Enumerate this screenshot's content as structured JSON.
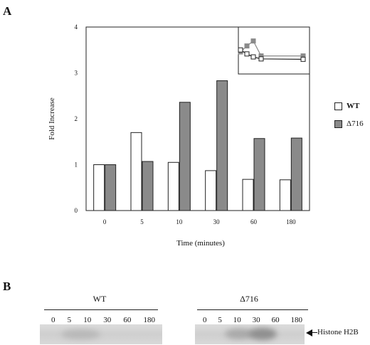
{
  "panel_a_label": "A",
  "panel_b_label": "B",
  "chart_data": {
    "type": "bar",
    "categories": [
      "0",
      "5",
      "10",
      "30",
      "60",
      "180"
    ],
    "series": [
      {
        "name": "WT",
        "values": [
          1.0,
          1.7,
          1.05,
          0.87,
          0.68,
          0.67
        ],
        "color": "#ffffff"
      },
      {
        "name": "Δ716",
        "values": [
          1.0,
          1.07,
          2.36,
          2.83,
          1.57,
          1.58
        ],
        "color": "#8a8a8a"
      }
    ],
    "xlabel": "Time (minutes)",
    "ylabel": "Fold Increase",
    "ylim": [
      0,
      4
    ],
    "yticks": [
      "0",
      "1",
      "2",
      "3",
      "4"
    ],
    "grid": false,
    "legend_position": "right",
    "inset": {
      "description_values": {
        "wt": [
          0.85,
          0.65,
          0.5,
          0.4,
          0.38
        ],
        "d716": [
          0.75,
          1.05,
          1.3,
          0.55,
          0.55
        ]
      }
    }
  },
  "blot": {
    "wt_title": "WT",
    "d716_title": "Δ716",
    "lanes": [
      "0",
      "5",
      "10",
      "30",
      "60",
      "180"
    ],
    "band_label": "Histone H2B"
  }
}
